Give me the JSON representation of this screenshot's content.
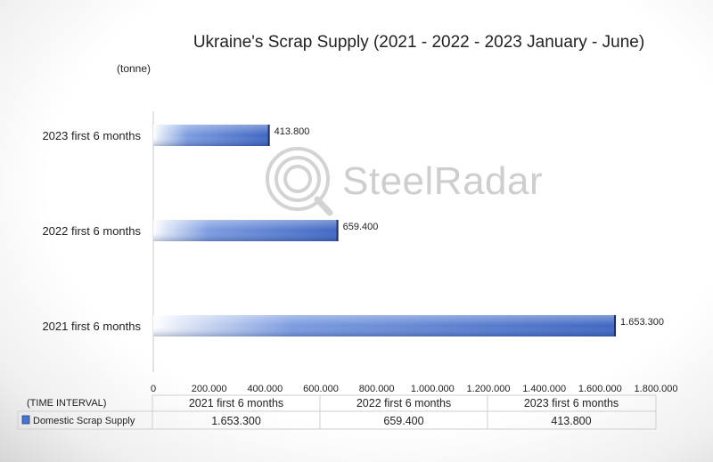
{
  "chart_data": {
    "type": "bar",
    "orientation": "horizontal",
    "title": "Ukraine's Scrap Supply (2021 - 2022 - 2023 January - June)",
    "ylabel": "(tonne)",
    "categories": [
      "2021 first 6 months",
      "2022 first 6 months",
      "2023 first 6 months"
    ],
    "series": [
      {
        "name": "Domestic Scrap Supply",
        "values": [
          1653300,
          659400,
          413800
        ]
      }
    ],
    "value_labels": [
      "1.653.300",
      "659.400",
      "413.800"
    ],
    "xlim": [
      0,
      1800000
    ],
    "ticks": [
      0,
      200000,
      400000,
      600000,
      800000,
      1000000,
      1200000,
      1400000,
      1600000,
      1800000
    ],
    "tick_labels": [
      "0",
      "200.000",
      "400.000",
      "600.000",
      "800.000",
      "1.000.000",
      "1.200.000",
      "1.400.000",
      "1.600.000",
      "1.800.000"
    ],
    "grid": false,
    "bar_color": "#4a74c9",
    "data_table": {
      "corner_label": "(TIME INTERVAL)",
      "header": [
        "2021 first 6 months",
        "2022 first 6 months",
        "2023 first 6 months"
      ],
      "row_label": "Domestic Scrap Supply",
      "row_values": [
        "1.653.300",
        "659.400",
        "413.800"
      ]
    }
  },
  "watermark": {
    "text": "SteelRadar",
    "icon": "magnifier-logo-icon"
  }
}
